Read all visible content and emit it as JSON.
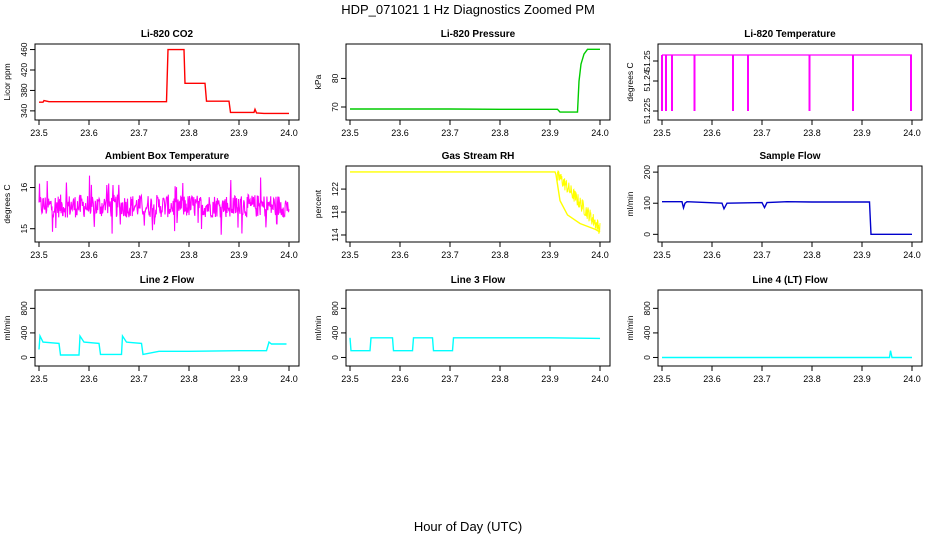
{
  "figure": {
    "title": "HDP_071021  1 Hz Diagnostics Zoomed PM",
    "xlabel": "Hour of Day (UTC)"
  },
  "chart_data": [
    {
      "type": "line",
      "title": "Li-820 CO2",
      "ylabel": "Licor ppm",
      "color": "#ff0000",
      "xlim": [
        23.5,
        24.0
      ],
      "ylim": [
        328,
        465
      ],
      "xticks": [
        "23.5",
        "23.6",
        "23.7",
        "23.8",
        "23.9",
        "24.0"
      ],
      "yticks": [
        340,
        380,
        420,
        460
      ],
      "x": [
        23.5,
        23.508,
        23.51,
        23.52,
        23.6,
        23.7,
        23.755,
        23.758,
        23.79,
        23.792,
        23.832,
        23.835,
        23.88,
        23.883,
        23.93,
        23.932,
        23.935,
        23.95,
        24.0
      ],
      "y": [
        357,
        357,
        360,
        358,
        358,
        358,
        358,
        460,
        460,
        394,
        394,
        359,
        359,
        337,
        337,
        343,
        336,
        335,
        335
      ]
    },
    {
      "type": "line",
      "title": "Li-820 Pressure",
      "ylabel": "kPa",
      "color": "#00cc00",
      "xlim": [
        23.5,
        24.0
      ],
      "ylim": [
        66.5,
        91
      ],
      "xticks": [
        "23.5",
        "23.6",
        "23.7",
        "23.8",
        "23.9",
        "24.0"
      ],
      "yticks": [
        70,
        80
      ],
      "x": [
        23.5,
        23.6,
        23.7,
        23.8,
        23.9,
        23.915,
        23.92,
        23.955,
        23.958,
        23.962,
        23.968,
        23.975,
        24.0
      ],
      "y": [
        69.3,
        69.3,
        69.3,
        69.2,
        69.2,
        69.2,
        68.2,
        68.2,
        79,
        85,
        88.5,
        90.2,
        90.2
      ]
    },
    {
      "type": "line",
      "title": "Li-820 Temperature",
      "ylabel": "degrees C",
      "color": "#ff00ff",
      "xlim": [
        23.5,
        24.0
      ],
      "ylim": [
        51.222,
        51.257
      ],
      "xticks": [
        "23.5",
        "23.6",
        "23.7",
        "23.8",
        "23.9",
        "24.0"
      ],
      "yticks": [
        51.225,
        51.24,
        51.25
      ],
      "baseline": 51.253,
      "dips": [
        {
          "x": 23.5,
          "y": 51.225
        },
        {
          "x": 23.508,
          "y": 51.225
        },
        {
          "x": 23.52,
          "y": 51.225
        },
        {
          "x": 23.565,
          "y": 51.225
        },
        {
          "x": 23.642,
          "y": 51.225
        },
        {
          "x": 23.672,
          "y": 51.225
        },
        {
          "x": 23.795,
          "y": 51.225
        },
        {
          "x": 23.882,
          "y": 51.225
        },
        {
          "x": 23.998,
          "y": 51.225
        }
      ]
    },
    {
      "type": "line",
      "title": "Ambient Box Temperature",
      "ylabel": "degrees C",
      "color": "#ff00ff",
      "xlim": [
        23.5,
        24.0
      ],
      "ylim": [
        14.75,
        16.45
      ],
      "xticks": [
        "23.5",
        "23.6",
        "23.7",
        "23.8",
        "23.9",
        "24.0"
      ],
      "yticks": [
        15.0,
        16.0
      ],
      "signal": {
        "kind": "noise",
        "mean": 15.55,
        "halfwidth": 0.28,
        "extreme_low": 14.85,
        "extreme_high": 16.3
      }
    },
    {
      "type": "line",
      "title": "Gas Stream RH",
      "ylabel": "percent",
      "color": "#ffff00",
      "xlim": [
        23.5,
        24.0
      ],
      "ylim": [
        113.3,
        125.5
      ],
      "xticks": [
        "23.5",
        "23.6",
        "23.7",
        "23.8",
        "23.9",
        "24.0"
      ],
      "yticks": [
        114,
        118,
        122
      ],
      "x": [
        23.5,
        23.6,
        23.7,
        23.8,
        23.9,
        23.91,
        23.912,
        23.92,
        23.935,
        23.96,
        23.99,
        24.0
      ],
      "y": [
        125,
        125,
        125,
        125,
        125,
        125,
        124.5,
        120,
        117.5,
        116,
        115,
        114.5
      ]
    },
    {
      "type": "line",
      "title": "Sample Flow",
      "ylabel": "ml/min",
      "color": "#0000cc",
      "xlim": [
        23.5,
        24.0
      ],
      "ylim": [
        -15,
        210
      ],
      "xticks": [
        "23.5",
        "23.6",
        "23.7",
        "23.8",
        "23.9",
        "24.0"
      ],
      "yticks": [
        0,
        100,
        200
      ],
      "x": [
        23.5,
        23.54,
        23.543,
        23.546,
        23.55,
        23.62,
        23.624,
        23.63,
        23.7,
        23.705,
        23.71,
        23.75,
        23.8,
        23.91,
        23.915,
        23.918,
        23.95,
        24.0
      ],
      "y": [
        105,
        105,
        85,
        100,
        105,
        100,
        82,
        100,
        102,
        86,
        102,
        105,
        104,
        104,
        104,
        0,
        0,
        0
      ]
    },
    {
      "type": "line",
      "title": "Line 2 Flow",
      "ylabel": "ml/min",
      "color": "#00ffff",
      "xlim": [
        23.5,
        24.0
      ],
      "ylim": [
        -90,
        1050
      ],
      "xticks": [
        "23.5",
        "23.6",
        "23.7",
        "23.8",
        "23.9",
        "24.0"
      ],
      "yticks": [
        0,
        400,
        800
      ],
      "x": [
        23.5,
        23.502,
        23.508,
        23.54,
        23.543,
        23.58,
        23.582,
        23.59,
        23.62,
        23.623,
        23.665,
        23.667,
        23.675,
        23.705,
        23.708,
        23.74,
        23.8,
        23.9,
        23.955,
        23.96,
        23.965,
        23.995
      ],
      "y": [
        130,
        350,
        250,
        230,
        40,
        40,
        350,
        250,
        230,
        50,
        50,
        350,
        250,
        230,
        50,
        100,
        100,
        110,
        110,
        250,
        220,
        220
      ]
    },
    {
      "type": "line",
      "title": "Line 3 Flow",
      "ylabel": "ml/min",
      "color": "#00ffff",
      "xlim": [
        23.5,
        24.0
      ],
      "ylim": [
        -90,
        1050
      ],
      "xticks": [
        "23.5",
        "23.6",
        "23.7",
        "23.8",
        "23.9",
        "24.0"
      ],
      "yticks": [
        0,
        400,
        800
      ],
      "x": [
        23.5,
        23.502,
        23.54,
        23.542,
        23.585,
        23.587,
        23.625,
        23.627,
        23.665,
        23.667,
        23.705,
        23.707,
        23.8,
        23.9,
        24.0
      ],
      "y": [
        320,
        110,
        110,
        320,
        320,
        110,
        110,
        320,
        320,
        110,
        110,
        320,
        320,
        320,
        310
      ]
    },
    {
      "type": "line",
      "title": "Line 4 (LT) Flow",
      "ylabel": "ml/min",
      "color": "#00ffff",
      "xlim": [
        23.5,
        24.0
      ],
      "ylim": [
        -90,
        1050
      ],
      "xticks": [
        "23.5",
        "23.6",
        "23.7",
        "23.8",
        "23.9",
        "24.0"
      ],
      "yticks": [
        0,
        400,
        800
      ],
      "x": [
        23.5,
        23.6,
        23.7,
        23.8,
        23.9,
        23.955,
        23.957,
        23.96,
        24.0
      ],
      "y": [
        0,
        0,
        0,
        0,
        0,
        0,
        110,
        0,
        0
      ]
    }
  ]
}
